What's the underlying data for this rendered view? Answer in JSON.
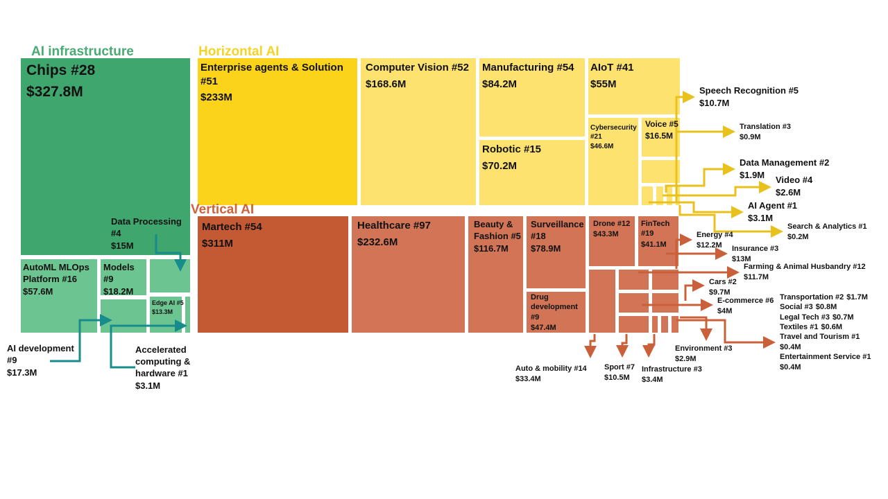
{
  "groups": [
    {
      "title": "AI infrastructure",
      "nodes": [
        {
          "label": "Chips #28",
          "value": "$327.8M"
        },
        {
          "label": "Data Processing #4",
          "value": "$15M"
        },
        {
          "label": "AutoML MLOps Platform #16",
          "value": "$57.6M"
        },
        {
          "label": "Models #9",
          "value": "$18.2M"
        },
        {
          "label": "Edge AI #5",
          "value": "$13.3M"
        },
        {
          "label": "AI development #9",
          "value": "$17.3M"
        },
        {
          "label": "Accelerated computing & hardware #1",
          "value": "$3.1M"
        }
      ]
    },
    {
      "title": "Horizontal AI",
      "nodes": [
        {
          "label": "Enterprise agents & Solution #51",
          "value": "$233M"
        },
        {
          "label": "Computer Vision #52",
          "value": "$168.6M"
        },
        {
          "label": "Manufacturing #54",
          "value": "$84.2M"
        },
        {
          "label": "Robotic #15",
          "value": "$70.2M"
        },
        {
          "label": "AIoT #41",
          "value": "$55M"
        },
        {
          "label": "Cybersecurity #21",
          "value": "$46.6M"
        },
        {
          "label": "Voice #5",
          "value": "$16.5M"
        },
        {
          "label": "Speech Recognition #5",
          "value": "$10.7M"
        },
        {
          "label": "Translation #3",
          "value": "$0.9M"
        },
        {
          "label": "Data Management #2",
          "value": "$1.9M"
        },
        {
          "label": "Video #4",
          "value": "$2.6M"
        },
        {
          "label": "AI Agent #1",
          "value": "$3.1M"
        },
        {
          "label": "Search & Analytics #1",
          "value": "$0.2M"
        }
      ]
    },
    {
      "title": "Vertical AI",
      "nodes": [
        {
          "label": "Martech #54",
          "value": "$311M"
        },
        {
          "label": "Healthcare #97",
          "value": "$232.6M"
        },
        {
          "label": "Beauty & Fashion #5",
          "value": "$116.7M"
        },
        {
          "label": "Surveillance #18",
          "value": "$78.9M"
        },
        {
          "label": "Drug development #9",
          "value": "$47.4M"
        },
        {
          "label": "Drone #12",
          "value": "$43.3M"
        },
        {
          "label": "FinTech #19",
          "value": "$41.1M"
        },
        {
          "label": "Auto & mobility #14",
          "value": "$33.4M"
        },
        {
          "label": "Energy #4",
          "value": "$12.2M"
        },
        {
          "label": "Insurance #3",
          "value": "$13M"
        },
        {
          "label": "Farming & Animal Husbandry #12",
          "value": "$11.7M"
        },
        {
          "label": "Cars #2",
          "value": "$9.7M"
        },
        {
          "label": "Sport #7",
          "value": "$10.5M"
        },
        {
          "label": "Infrastructure #3",
          "value": "$3.4M"
        },
        {
          "label": "Environment #3",
          "value": "$2.9M"
        },
        {
          "label": "E-commerce #6",
          "value": "$4M"
        },
        {
          "label": "Transportation #2",
          "value": "$1.7M"
        },
        {
          "label": "Social #3",
          "value": "$0.8M"
        },
        {
          "label": "Legal Tech #3",
          "value": "$0.7M"
        },
        {
          "label": "Textiles #1",
          "value": "$0.6M"
        },
        {
          "label": "Travel and Tourism #1",
          "value": "$0.4M"
        },
        {
          "label": "Entertainment Service #1",
          "value": "$0.4M"
        }
      ]
    }
  ]
}
